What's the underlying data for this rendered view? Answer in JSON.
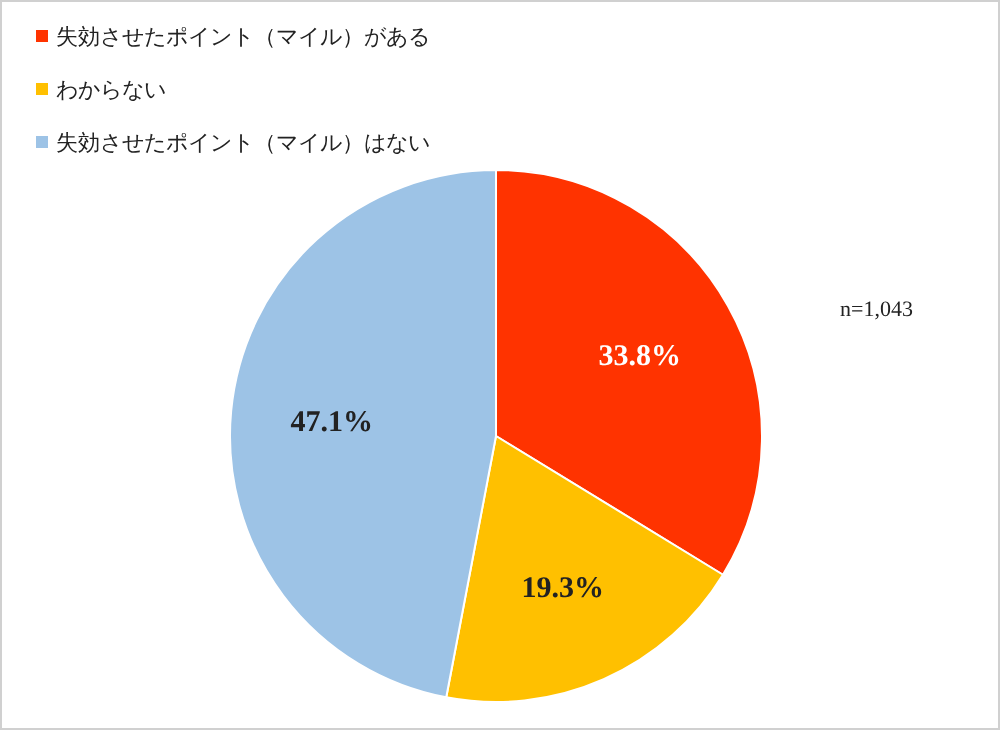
{
  "chart_data": {
    "type": "pie",
    "categories": [
      "失効させたポイント（マイル）がある",
      "わからない",
      "失効させたポイント（マイル）はない"
    ],
    "values": [
      33.8,
      19.3,
      47.1
    ],
    "colors": [
      "#ff3300",
      "#ffc000",
      "#9dc3e6"
    ],
    "value_labels": [
      "33.8%",
      "19.3%",
      "47.1%"
    ],
    "legend": "top left",
    "annotations": [
      "n=1,043"
    ]
  }
}
